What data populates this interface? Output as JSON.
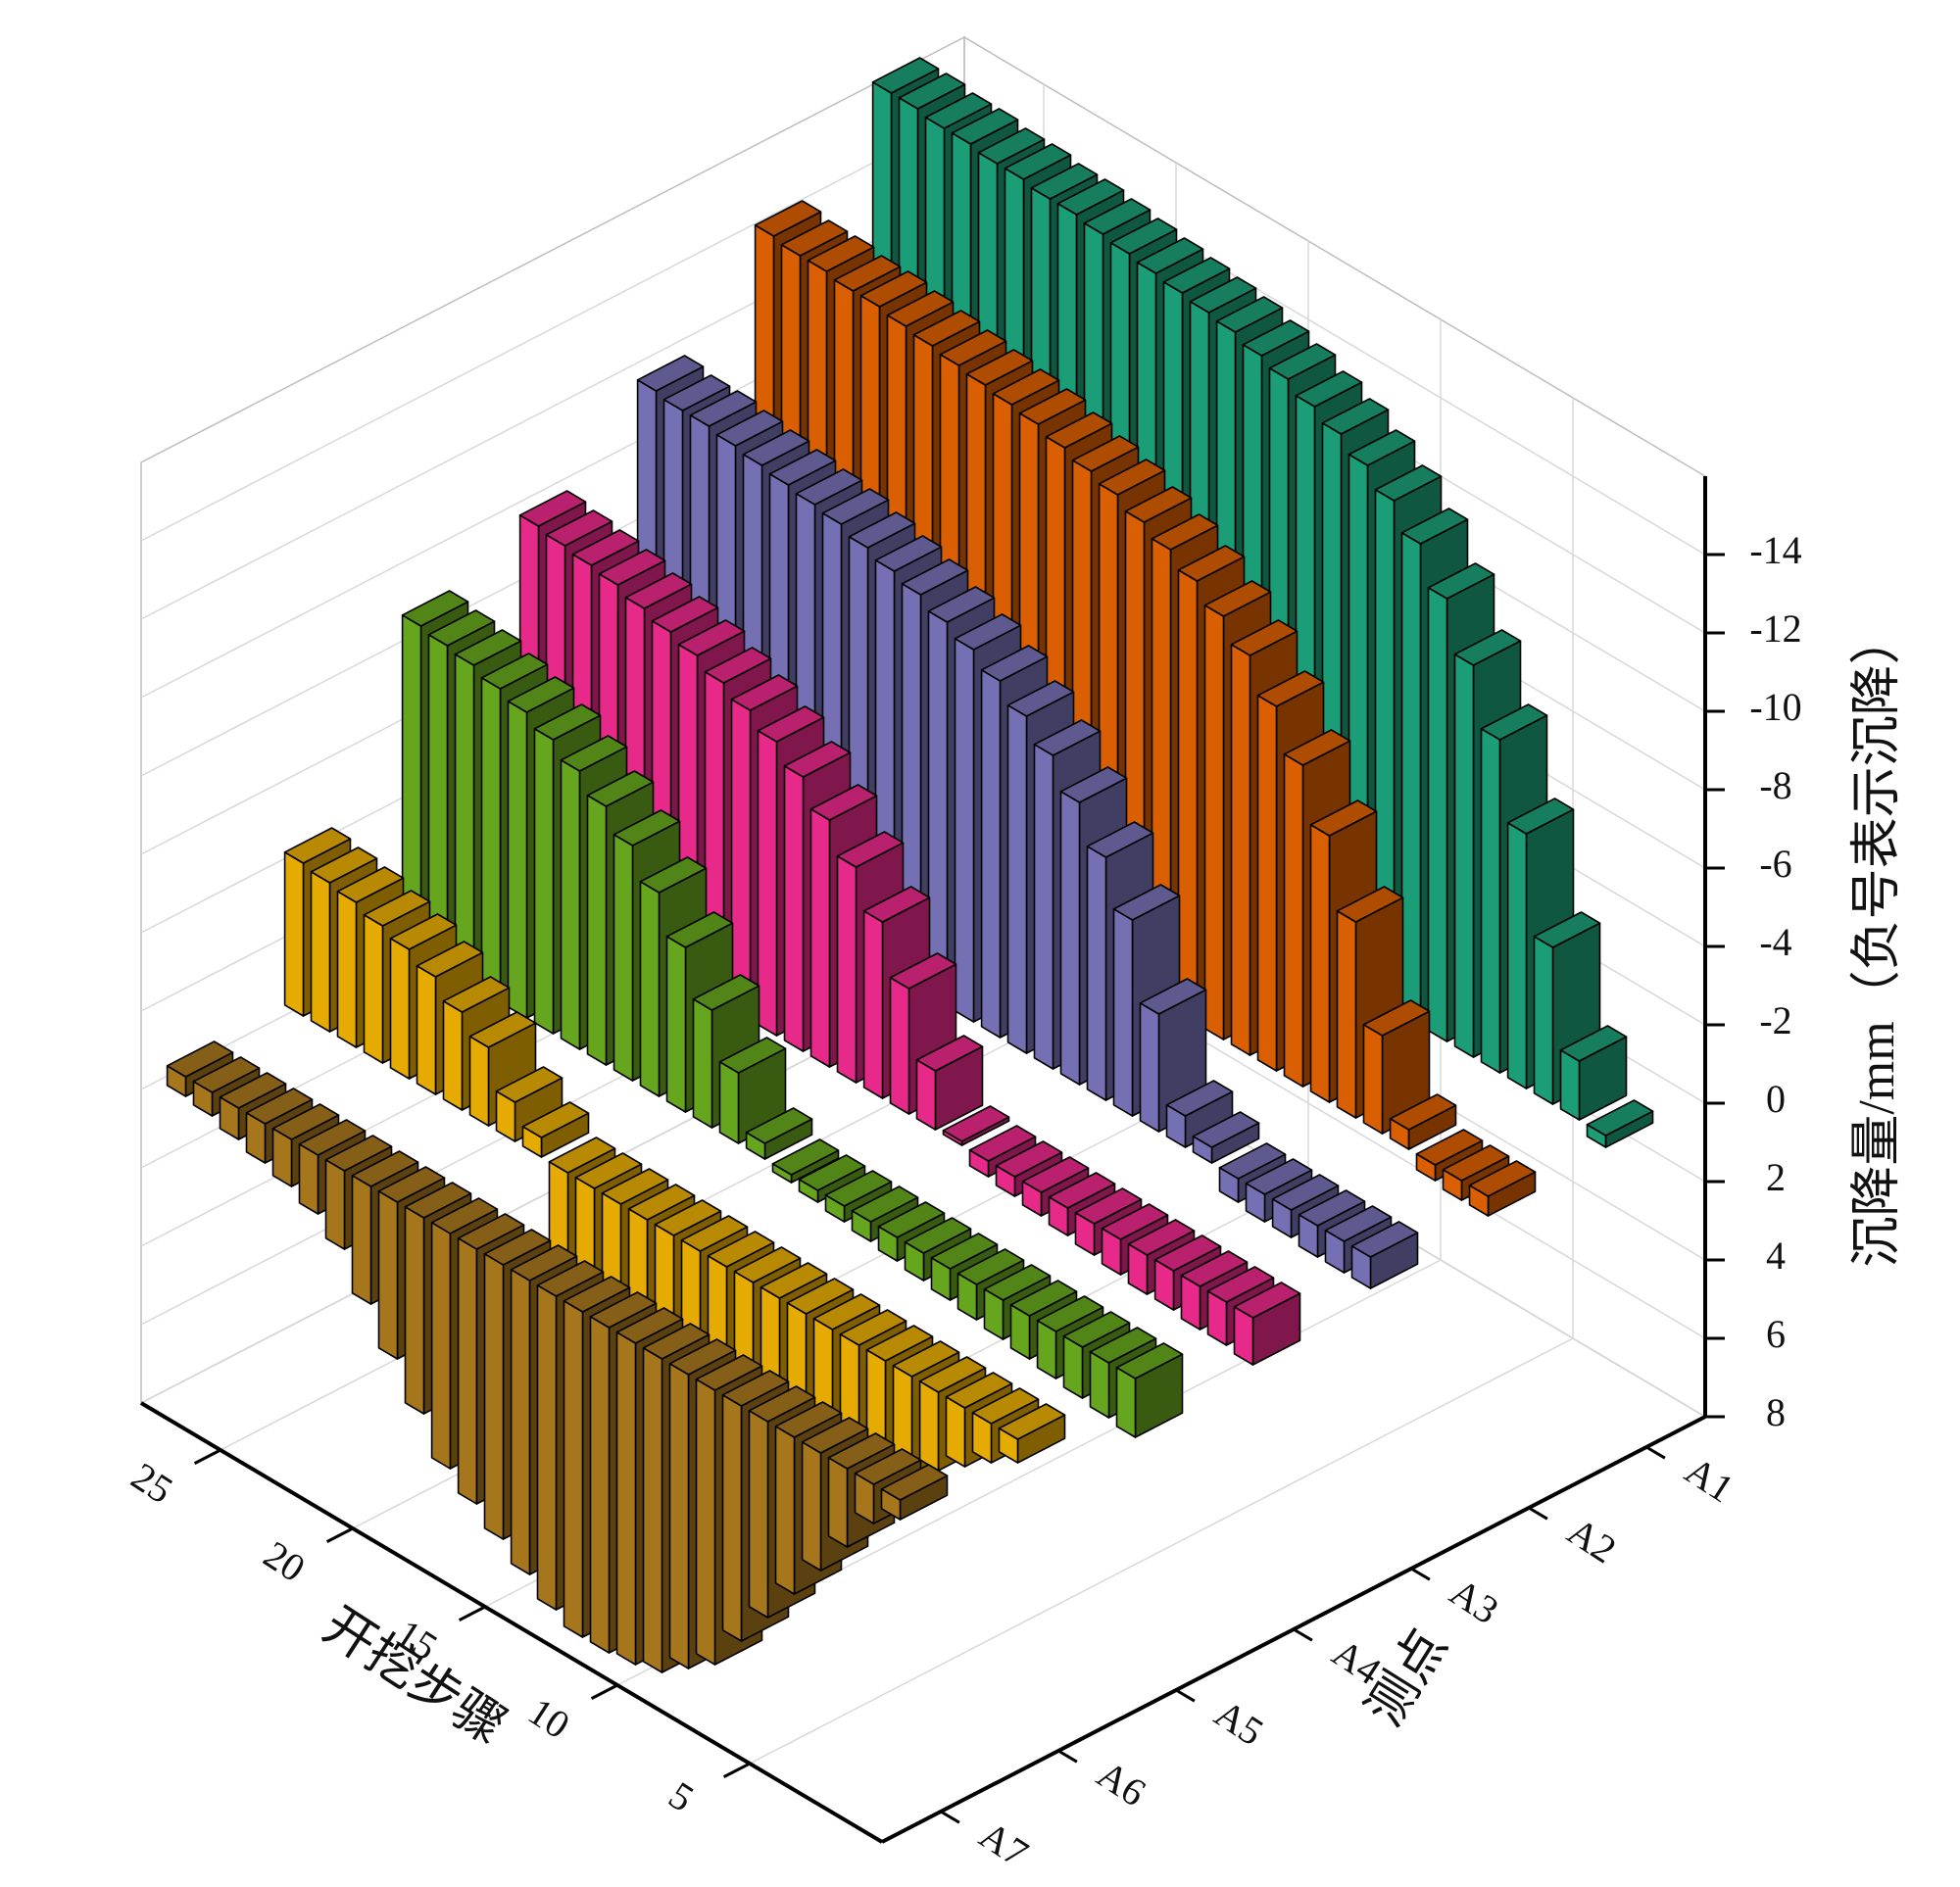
{
  "chart_data": {
    "type": "bar3d",
    "x_label": "开挖步骤",
    "series_label": "测点",
    "z_label": "沉降量/mm（负号表示沉降）",
    "x": [
      1,
      2,
      3,
      4,
      5,
      6,
      7,
      8,
      9,
      10,
      11,
      12,
      13,
      14,
      15,
      16,
      17,
      18,
      19,
      20,
      21,
      22,
      23,
      24,
      25,
      26,
      27,
      28
    ],
    "xlim": [
      0,
      28
    ],
    "xticks": [
      5,
      10,
      15,
      20,
      25
    ],
    "zlim": [
      8,
      -16
    ],
    "zticks": [
      8,
      6,
      4,
      2,
      0,
      -2,
      -4,
      -6,
      -8,
      -10,
      -12,
      -14
    ],
    "grid": true,
    "series": [
      {
        "name": "A1",
        "color": "#1b9e77",
        "values": [
          0.3,
          -1.5,
          -4,
          -6.5,
          -8.5,
          -10,
          -11.3,
          -12.3,
          -13,
          -13.5,
          -13.9,
          -14.2,
          -14.5,
          -14.7,
          -14.9,
          -15,
          -15.1,
          -15.2,
          -15.3,
          -15.4,
          -15.5,
          -15.5,
          -15.6,
          -15.6,
          -15.7,
          -15.7,
          -15.8,
          -15.8
        ]
      },
      {
        "name": "A2",
        "color": "#d95f02",
        "values": [
          0.5,
          0.5,
          0.4,
          -0.5,
          -2.5,
          -5,
          -6.8,
          -8.2,
          -9.3,
          -10.2,
          -10.8,
          -11.3,
          -11.7,
          -12,
          -12.3,
          -12.5,
          -12.7,
          -12.9,
          -13,
          -13.1,
          -13.2,
          -13.3,
          -13.4,
          -13.5,
          -13.5,
          -13.6,
          -13.6,
          -13.7
        ]
      },
      {
        "name": "A3",
        "color": "#7570b3",
        "values": [
          0.8,
          0.8,
          0.8,
          0.7,
          0.7,
          0.6,
          -0.4,
          -0.8,
          -3,
          -5,
          -6.2,
          -7.2,
          -8,
          -8.6,
          -9.1,
          -9.5,
          -9.8,
          -10.1,
          -10.3,
          -10.5,
          -10.7,
          -10.8,
          -10.9,
          -11,
          -11.1,
          -11.2,
          -11.2,
          -11.3
        ]
      },
      {
        "name": "A4",
        "color": "#e7298a",
        "values": [
          1.2,
          1.1,
          1.1,
          1,
          1,
          0.9,
          0.8,
          0.7,
          0.6,
          0.5,
          0.4,
          -0.1,
          -1.5,
          -3.2,
          -4.5,
          -5.5,
          -6.3,
          -7,
          -7.5,
          -7.9,
          -8.2,
          -8.5,
          -8.7,
          -8.9,
          -9.1,
          -9.2,
          -9.3,
          -9.4
        ]
      },
      {
        "name": "A5",
        "color": "#66a61e",
        "values": [
          1.5,
          1.4,
          1.3,
          1.2,
          1.1,
          1,
          0.9,
          0.8,
          0.7,
          0.6,
          0.5,
          0.4,
          0.3,
          0.2,
          -0.4,
          -1.8,
          -3,
          -4.2,
          -5.2,
          -6,
          -6.6,
          -7.1,
          -7.5,
          -7.8,
          -8,
          -8.2,
          -8.3,
          -8.4
        ]
      },
      {
        "name": "A6",
        "color": "#e6ab02",
        "values": [
          0.6,
          1,
          1.5,
          2,
          2.5,
          3,
          3.5,
          4,
          4.3,
          4.6,
          4.8,
          5,
          5.1,
          5.2,
          5.2,
          5.1,
          5,
          4.5,
          -0.5,
          -1,
          -2,
          -2.5,
          -3,
          -3.3,
          -3.5,
          -3.7,
          -3.8,
          -3.9
        ]
      },
      {
        "name": "A7",
        "color": "#a6761d",
        "values": [
          0.5,
          1,
          2,
          3,
          4,
          5,
          6,
          7,
          7.5,
          8,
          8.2,
          8.3,
          8.3,
          8,
          7.5,
          7,
          6.5,
          6,
          5,
          4,
          3,
          2,
          1.5,
          1.2,
          1,
          0.8,
          0.6,
          0.5
        ]
      }
    ]
  }
}
